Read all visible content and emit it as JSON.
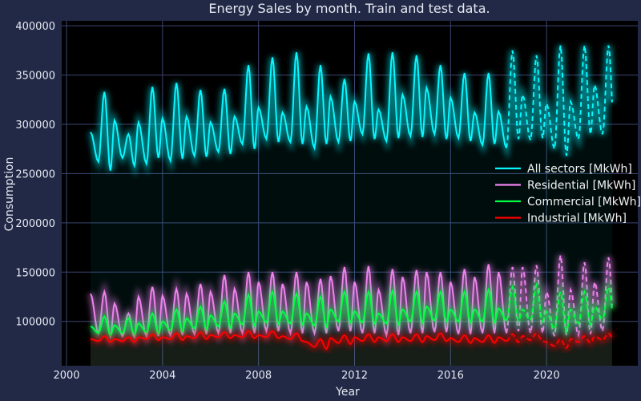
{
  "chart_data": {
    "type": "line",
    "title": "Energy Sales by month. Train and test data.",
    "xlabel": "Year",
    "ylabel": "Consumption",
    "xlim": [
      1999.8,
      2023.8
    ],
    "ylim": [
      55000,
      405000
    ],
    "x_ticks": [
      2000,
      2004,
      2008,
      2012,
      2016,
      2020
    ],
    "y_ticks": [
      100000,
      150000,
      200000,
      250000,
      300000,
      350000,
      400000
    ],
    "grid": true,
    "legend_position": "center-right",
    "background_color": "#000000",
    "figure_background": "#212946",
    "grid_color": "#3c4572",
    "train_period": [
      2001.0,
      2018.33
    ],
    "test_period": [
      2018.42,
      2022.75
    ],
    "legend": [
      {
        "label": "All sectors [MkWh]",
        "color": "#08F7FE"
      },
      {
        "label": "Residential [MkWh]",
        "color": "#EE82EE"
      },
      {
        "label": "Commercial [MkWh]",
        "color": "#00FF41"
      },
      {
        "label": "Industrial [MkWh]",
        "color": "#FF0000"
      }
    ],
    "series": [
      {
        "name": "All sectors [MkWh]",
        "color": "#08F7FE",
        "summer_peak": [
          333000,
          290000,
          338000,
          342000,
          335000,
          336000,
          360000,
          368000,
          373000,
          360000,
          346000,
          372000,
          373000,
          370000,
          360000,
          352000,
          352000,
          375000,
          370000,
          380000,
          380000,
          380000
        ],
        "winter_peak": [
          292000,
          304000,
          302000,
          306000,
          308000,
          302000,
          308000,
          317000,
          312000,
          318000,
          328000,
          323000,
          315000,
          330000,
          337000,
          327000,
          312000,
          313000,
          330000,
          321000,
          323000,
          340000
        ],
        "spring_low": [
          262000,
          266000,
          260000,
          263000,
          268000,
          272000,
          280000,
          285000,
          282000,
          276000,
          282000,
          290000,
          283000,
          288000,
          290000,
          286000,
          279000,
          276000,
          284000,
          275000,
          285000,
          290000
        ],
        "fall_low": [
          253000,
          258000,
          266000,
          265000,
          267000,
          270000,
          275000,
          282000,
          280000,
          280000,
          283000,
          285000,
          286000,
          287000,
          285000,
          283000,
          280000,
          285000,
          286000,
          268000,
          290000,
          292000
        ]
      },
      {
        "name": "Residential [MkWh]",
        "color": "#EE82EE",
        "summer_peak": [
          130000,
          108000,
          135000,
          133000,
          138000,
          147000,
          150000,
          150000,
          150000,
          143000,
          155000,
          156000,
          153000,
          152000,
          150000,
          153000,
          158000,
          155000,
          157000,
          167000,
          160000,
          165000
        ],
        "winter_peak": [
          128000,
          118000,
          125000,
          126000,
          128000,
          130000,
          133000,
          140000,
          138000,
          140000,
          146000,
          140000,
          132000,
          145000,
          150000,
          140000,
          145000,
          150000,
          155000,
          130000,
          132000,
          140000
        ],
        "spring_low": [
          88000,
          85000,
          85000,
          86000,
          87000,
          88000,
          88000,
          90000,
          88000,
          88000,
          90000,
          88000,
          86000,
          88000,
          89000,
          87000,
          88000,
          88000,
          88000,
          85000,
          86000,
          90000
        ],
        "fall_low": [
          85000,
          84000,
          85000,
          86000,
          87000,
          88000,
          88000,
          90000,
          88000,
          88000,
          90000,
          88000,
          86000,
          88000,
          89000,
          87000,
          88000,
          90000,
          88000,
          86000,
          87000,
          90000
        ]
      },
      {
        "name": "Commercial [MkWh]",
        "color": "#00FF41",
        "summer_peak": [
          105000,
          103000,
          108000,
          112000,
          115000,
          120000,
          127000,
          130000,
          128000,
          125000,
          130000,
          130000,
          131000,
          130000,
          130000,
          130000,
          132000,
          135000,
          137000,
          130000,
          130000,
          135000
        ],
        "winter_peak": [
          95000,
          96000,
          98000,
          100000,
          103000,
          106000,
          108000,
          110000,
          110000,
          108000,
          112000,
          110000,
          108000,
          112000,
          115000,
          112000,
          112000,
          113000,
          112000,
          110000,
          112000,
          115000
        ],
        "spring_low": [
          88000,
          88000,
          89000,
          91000,
          93000,
          95000,
          97000,
          99000,
          98000,
          96000,
          100000,
          99000,
          98000,
          100000,
          101000,
          100000,
          100000,
          101000,
          101000,
          92000,
          98000,
          102000
        ],
        "fall_low": [
          86000,
          87000,
          88000,
          90000,
          92000,
          94000,
          96000,
          98000,
          97000,
          95000,
          99000,
          98000,
          97000,
          99000,
          100000,
          99000,
          99000,
          100000,
          100000,
          90000,
          97000,
          100000
        ]
      },
      {
        "name": "Industrial [MkWh]",
        "color": "#FF0000",
        "summer_peak": [
          85000,
          84000,
          87000,
          88000,
          89000,
          89000,
          90000,
          90000,
          88000,
          82000,
          86000,
          87000,
          87000,
          87000,
          88000,
          86000,
          86000,
          87000,
          88000,
          82000,
          85000,
          88000
        ],
        "winter_peak": [
          82000,
          82000,
          84000,
          84000,
          85000,
          86000,
          86000,
          86000,
          85000,
          79000,
          83000,
          84000,
          84000,
          84000,
          85000,
          83000,
          83000,
          84000,
          85000,
          79000,
          82000,
          85000
        ],
        "spring_low": [
          80000,
          80000,
          82000,
          82000,
          83000,
          84000,
          84000,
          84000,
          82000,
          74000,
          78000,
          80000,
          80000,
          80000,
          81000,
          79000,
          79000,
          80000,
          81000,
          75000,
          79000,
          81000
        ],
        "fall_low": [
          79000,
          79000,
          81000,
          81000,
          82000,
          83000,
          83000,
          83000,
          80000,
          72000,
          77000,
          79000,
          79000,
          79000,
          80000,
          78000,
          78000,
          79000,
          80000,
          73000,
          78000,
          80000
        ]
      }
    ]
  }
}
